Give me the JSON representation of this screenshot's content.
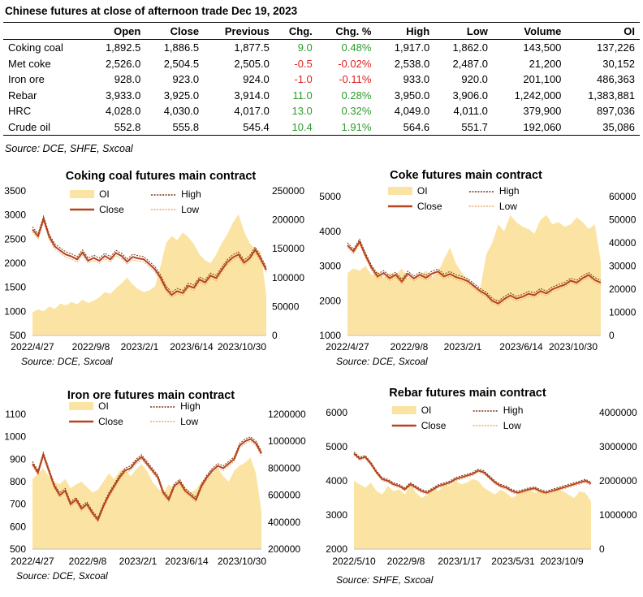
{
  "header": {
    "title": "Chinese futures at close of afternoon trade Dec 19, 2023",
    "source": "Source: DCE, SHFE, Sxcoal"
  },
  "table": {
    "columns": [
      "",
      "Open",
      "Close",
      "Previous",
      "Chg.",
      "Chg. %",
      "High",
      "Low",
      "Volume",
      "OI"
    ],
    "rows": [
      {
        "name": "Coking coal",
        "open": "1,892.5",
        "close": "1,886.5",
        "previous": "1,877.5",
        "chg": "9.0",
        "chg_pct": "0.48%",
        "high": "1,917.0",
        "low": "1,862.0",
        "volume": "143,500",
        "oi": "137,226",
        "dir": "up"
      },
      {
        "name": "Met coke",
        "open": "2,526.0",
        "close": "2,504.5",
        "previous": "2,505.0",
        "chg": "-0.5",
        "chg_pct": "-0.02%",
        "high": "2,538.0",
        "low": "2,487.0",
        "volume": "21,200",
        "oi": "30,152",
        "dir": "down"
      },
      {
        "name": "Iron ore",
        "open": "928.0",
        "close": "923.0",
        "previous": "924.0",
        "chg": "-1.0",
        "chg_pct": "-0.11%",
        "high": "933.0",
        "low": "920.0",
        "volume": "201,100",
        "oi": "486,363",
        "dir": "down"
      },
      {
        "name": "Rebar",
        "open": "3,933.0",
        "close": "3,925.0",
        "previous": "3,914.0",
        "chg": "11.0",
        "chg_pct": "0.28%",
        "high": "3,950.0",
        "low": "3,906.0",
        "volume": "1,242,000",
        "oi": "1,383,881",
        "dir": "up"
      },
      {
        "name": "HRC",
        "open": "4,028.0",
        "close": "4,030.0",
        "previous": "4,017.0",
        "chg": "13.0",
        "chg_pct": "0.32%",
        "high": "4,049.0",
        "low": "4,011.0",
        "volume": "379,900",
        "oi": "897,036",
        "dir": "up"
      },
      {
        "name": "Crude oil",
        "open": "552.8",
        "close": "555.8",
        "previous": "545.4",
        "chg": "10.4",
        "chg_pct": "1.91%",
        "high": "564.6",
        "low": "551.7",
        "volume": "192,060",
        "oi": "35,086",
        "dir": "up"
      }
    ]
  },
  "colors": {
    "oi_fill": "#fbe4a3",
    "close_line": "#b5441d",
    "high_line": "#7a3414",
    "low_line": "#f0a868",
    "positive": "#2e9b2e",
    "negative": "#e02020"
  },
  "chart_data": [
    {
      "type": "line",
      "title": "Coking coal futures main contract",
      "source": "Source:  DCE, Sxcoal",
      "legend": [
        "OI",
        "High",
        "Close",
        "Low"
      ],
      "x_tick_labels": [
        "2022/4/27",
        "2022/9/8",
        "2023/2/1",
        "2023/6/14",
        "2023/10/30"
      ],
      "ylim": [
        500,
        3500
      ],
      "y_ticks": [
        "500",
        "1000",
        "1500",
        "2000",
        "2500",
        "3000",
        "3500"
      ],
      "y2lim": [
        0,
        250000
      ],
      "y2_ticks": [
        "0",
        "50000",
        "100000",
        "150000",
        "200000",
        "250000"
      ],
      "close": [
        2700,
        2560,
        2920,
        2550,
        2350,
        2260,
        2180,
        2140,
        2080,
        2220,
        2050,
        2110,
        2050,
        2150,
        2080,
        2210,
        2150,
        2030,
        2130,
        2100,
        2080,
        1980,
        1870,
        1700,
        1470,
        1340,
        1420,
        1380,
        1530,
        1490,
        1660,
        1600,
        1740,
        1690,
        1860,
        2020,
        2120,
        2180,
        2010,
        2100,
        2280,
        2090,
        1860
      ],
      "high_offset": 55,
      "low_offset": 55,
      "oi": [
        40000,
        45000,
        42000,
        50000,
        46000,
        55000,
        52000,
        58000,
        54000,
        62000,
        56000,
        60000,
        66000,
        75000,
        72000,
        82000,
        90000,
        100000,
        88000,
        80000,
        75000,
        78000,
        85000,
        120000,
        160000,
        172000,
        165000,
        178000,
        170000,
        158000,
        140000,
        130000,
        125000,
        140000,
        160000,
        175000,
        195000,
        210000,
        180000,
        160000,
        150000,
        145000,
        70000
      ]
    },
    {
      "type": "line",
      "title": "Coke futures main contract",
      "source": "Source:  DCE, Sxcoal",
      "legend": [
        "OI",
        "High",
        "Close",
        "Low"
      ],
      "x_tick_labels": [
        "2022/4/27",
        "2022/9/8",
        "2023/2/1",
        "2023/6/14",
        "2023/10/30"
      ],
      "ylim": [
        1000,
        5000
      ],
      "y_ticks": [
        "1000",
        "2000",
        "3000",
        "4000",
        "5000"
      ],
      "y2lim": [
        0,
        60000
      ],
      "y2_ticks": [
        "0",
        "10000",
        "20000",
        "30000",
        "40000",
        "50000",
        "60000"
      ],
      "close": [
        3600,
        3420,
        3700,
        3300,
        2950,
        2700,
        2800,
        2650,
        2750,
        2550,
        2780,
        2640,
        2750,
        2660,
        2780,
        2840,
        2700,
        2770,
        2680,
        2630,
        2560,
        2420,
        2280,
        2180,
        2000,
        1920,
        2050,
        2150,
        2060,
        2110,
        2200,
        2160,
        2280,
        2210,
        2330,
        2400,
        2460,
        2580,
        2520,
        2650,
        2740,
        2600,
        2520
      ],
      "high_offset": 70,
      "low_offset": 70,
      "oi": [
        27000,
        29000,
        28000,
        30000,
        26000,
        28000,
        25000,
        27000,
        26000,
        29000,
        25000,
        24000,
        26000,
        28000,
        25000,
        27000,
        33000,
        38000,
        31000,
        27000,
        24000,
        21000,
        20000,
        35000,
        40000,
        48000,
        45000,
        52000,
        49000,
        47000,
        46000,
        44000,
        50000,
        52000,
        48000,
        49000,
        47000,
        48000,
        51000,
        49000,
        46000,
        48000,
        32000
      ]
    },
    {
      "type": "line",
      "title": "Iron ore futures main contract",
      "source": "Source:  DCE, Sxcoal",
      "legend": [
        "OI",
        "High",
        "Close",
        "Low"
      ],
      "x_tick_labels": [
        "2022/4/27",
        "2022/9/8",
        "2023/2/1",
        "2023/6/14",
        "2023/10/30"
      ],
      "ylim": [
        500,
        1100
      ],
      "y_ticks": [
        "500",
        "600",
        "700",
        "800",
        "900",
        "1000",
        "1100"
      ],
      "y2lim": [
        200000,
        1200000
      ],
      "y2_ticks": [
        "200000",
        "400000",
        "600000",
        "800000",
        "1000000",
        "1200000"
      ],
      "close": [
        880,
        840,
        920,
        850,
        780,
        740,
        760,
        700,
        720,
        680,
        700,
        660,
        630,
        690,
        740,
        780,
        820,
        850,
        860,
        890,
        910,
        880,
        850,
        820,
        750,
        720,
        780,
        800,
        760,
        740,
        720,
        780,
        820,
        850,
        870,
        860,
        880,
        900,
        960,
        980,
        990,
        970,
        925
      ],
      "high_offset": 10,
      "low_offset": 10,
      "oi": [
        720000,
        760000,
        800000,
        740000,
        700000,
        680000,
        720000,
        650000,
        680000,
        700000,
        660000,
        620000,
        640000,
        700000,
        760000,
        720000,
        780000,
        800000,
        740000,
        790000,
        830000,
        780000,
        700000,
        650000,
        620000,
        680000,
        640000,
        700000,
        660000,
        620000,
        640000,
        700000,
        720000,
        760000,
        800000,
        740000,
        700000,
        780000,
        820000,
        840000,
        880000,
        760000,
        480000
      ]
    },
    {
      "type": "line",
      "title": "Rebar futures main contract",
      "source": "Source:  SHFE, Sxcoal",
      "legend": [
        "OI",
        "High",
        "Close",
        "Low"
      ],
      "x_tick_labels": [
        "2022/5/10",
        "2022/9/8",
        "2023/1/17",
        "2023/5/31",
        "2023/10/9"
      ],
      "ylim": [
        2000,
        6000
      ],
      "y_ticks": [
        "2000",
        "3000",
        "4000",
        "5000",
        "6000"
      ],
      "y2lim": [
        0,
        4000000
      ],
      "y2_ticks": [
        "0",
        "1000000",
        "2000000",
        "3000000",
        "4000000"
      ],
      "close": [
        4800,
        4650,
        4700,
        4500,
        4250,
        4050,
        4000,
        3900,
        3850,
        3750,
        3900,
        3800,
        3700,
        3650,
        3750,
        3850,
        3900,
        3950,
        4050,
        4100,
        4150,
        4200,
        4300,
        4250,
        4100,
        3950,
        3850,
        3800,
        3700,
        3650,
        3700,
        3750,
        3780,
        3700,
        3650,
        3700,
        3750,
        3800,
        3850,
        3900,
        3950,
        4000,
        3920
      ],
      "high_offset": 45,
      "low_offset": 45,
      "oi": [
        2000000,
        1900000,
        1800000,
        1950000,
        1700000,
        1600000,
        1850000,
        1700000,
        1750000,
        1600000,
        1900000,
        1650000,
        1500000,
        1600000,
        1800000,
        1700000,
        1900000,
        1850000,
        2000000,
        1900000,
        1950000,
        2050000,
        2000000,
        1800000,
        1700000,
        1600000,
        1750000,
        1650000,
        1500000,
        1600000,
        1700000,
        1750000,
        1650000,
        1700000,
        1600000,
        1650000,
        1750000,
        1700000,
        1600000,
        1500000,
        1700000,
        1650000,
        1400000
      ]
    }
  ]
}
